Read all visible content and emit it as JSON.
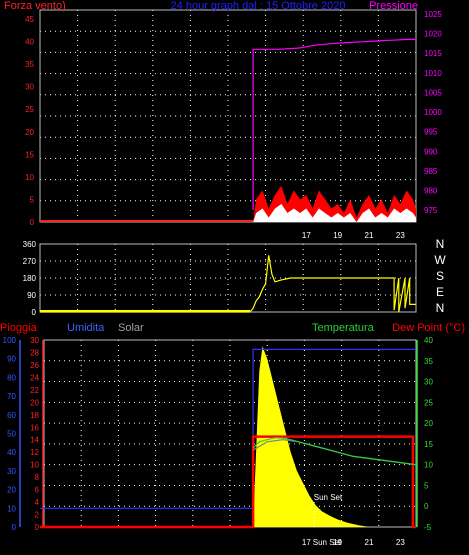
{
  "colors": {
    "wind": "#ff2020",
    "wind_gust_fill": "#ff0000",
    "wind_avg_fill": "#ffffff",
    "wind_dir": "#ffff00",
    "pressure": "#ff00ff",
    "rain": "#ff0000",
    "humidity": "#3030ff",
    "solar": "#ffff00",
    "temperature": "#2ecc40",
    "dew": "#808080",
    "grid": "#ffffff",
    "axis_left1": "#3355ff",
    "axis_left2": "#ff2020",
    "axis_right": "#33dd33"
  },
  "chart_data": [
    {
      "type": "line",
      "panel": "wind-pressure",
      "title": "24 hour graph dal : 15 Ottobre 2020",
      "left_label": "Forza vento)",
      "right_label": "Pressione",
      "left_ticks": [
        "0",
        "5",
        "10",
        "15",
        "20",
        "25",
        "30",
        "35",
        "40",
        "45"
      ],
      "right_ticks": [
        "975",
        "980",
        "985",
        "990",
        "995",
        "1000",
        "1005",
        "1010",
        "1015",
        "1020",
        "1025"
      ],
      "x_ticks": [
        "17",
        "19",
        "21",
        "23"
      ],
      "ylim_left": [
        0,
        47
      ],
      "ylim_right": [
        972,
        1026
      ],
      "x_range_hours": [
        0,
        24
      ],
      "grid": true,
      "series": [
        {
          "key": "pressure",
          "x": [
            13.6,
            13.6,
            15.2,
            16.5,
            17.5,
            18.5,
            19.5,
            20.5,
            21.5,
            22.5,
            23.5,
            24
          ],
          "y": [
            975,
            1016,
            1016,
            1016.3,
            1017,
            1017.4,
            1017.7,
            1017.9,
            1018.1,
            1018.3,
            1018.5,
            1018.5
          ]
        },
        {
          "key": "wind_gust",
          "x": [
            0,
            13.6,
            13.8,
            14.2,
            14.6,
            15,
            15.4,
            15.8,
            16.2,
            16.6,
            17,
            17.4,
            17.8,
            18.2,
            18.6,
            19,
            19.4,
            19.8,
            20.2,
            20.6,
            21,
            21.4,
            21.8,
            22.2,
            22.6,
            23,
            23.4,
            23.8,
            24
          ],
          "y": [
            0,
            0,
            5,
            7,
            3,
            6,
            8,
            4,
            7,
            5,
            6,
            3,
            7,
            5,
            3,
            4,
            2,
            5,
            1,
            4,
            6,
            3,
            5,
            2,
            6,
            4,
            7,
            5,
            3
          ]
        },
        {
          "key": "wind_avg",
          "x": [
            0,
            13.6,
            13.8,
            14.2,
            14.6,
            15,
            15.4,
            15.8,
            16.2,
            16.6,
            17,
            17.4,
            17.8,
            18.2,
            18.6,
            19,
            19.4,
            19.8,
            20.2,
            20.6,
            21,
            21.4,
            21.8,
            22.2,
            22.6,
            23,
            23.4,
            23.8,
            24
          ],
          "y": [
            0,
            0,
            2,
            3,
            1,
            3,
            4,
            2,
            3,
            2,
            3,
            1,
            3,
            2,
            1,
            2,
            1,
            2,
            0,
            2,
            3,
            1,
            2,
            1,
            3,
            2,
            3,
            2,
            1
          ]
        }
      ]
    },
    {
      "type": "line",
      "panel": "wind-direction",
      "left_ticks": [
        "0",
        "90",
        "180",
        "270",
        "360"
      ],
      "right_labels": [
        "N",
        "W",
        "S",
        "E",
        "N"
      ],
      "ylim": [
        0,
        360
      ],
      "grid": true,
      "series": [
        {
          "key": "wind_dir",
          "x": [
            0,
            13.4,
            13.6,
            13.8,
            14.0,
            14.2,
            14.4,
            14.6,
            14.8,
            15.0,
            15.4,
            16.0,
            17,
            18,
            19,
            20,
            21,
            22,
            22.6,
            22.6,
            22.9,
            22.9,
            23.3,
            23.3,
            23.6,
            23.6,
            24
          ],
          "y": [
            0,
            0,
            20,
            60,
            80,
            120,
            150,
            300,
            200,
            160,
            170,
            180,
            180,
            180,
            180,
            180,
            180,
            180,
            180,
            10,
            180,
            0,
            180,
            20,
            180,
            40,
            40
          ]
        }
      ]
    },
    {
      "type": "line",
      "panel": "rain-humidity-temp",
      "labels": {
        "rain": "Pioggia",
        "humidity": "Umidita",
        "solar": "Solar",
        "temperature": "Temperatura",
        "dew": "Dew Point (°C)"
      },
      "left1_ticks": [
        "0",
        "10",
        "20",
        "30",
        "40",
        "50",
        "60",
        "70",
        "80",
        "90",
        "100"
      ],
      "left2_ticks": [
        "0",
        "2",
        "4",
        "6",
        "8",
        "10",
        "12",
        "14",
        "16",
        "18",
        "20",
        "22",
        "24",
        "26",
        "28",
        "30"
      ],
      "right_ticks": [
        "-5",
        "0",
        "5",
        "10",
        "15",
        "20",
        "25",
        "30",
        "35",
        "40"
      ],
      "x_ticks": [
        "17",
        "19",
        "21",
        "23"
      ],
      "annotations": [
        "Sun Set",
        "Sun Set"
      ],
      "ylim_humidity": [
        0,
        100
      ],
      "ylim_rain": [
        0,
        30
      ],
      "ylim_temp": [
        -5,
        40
      ],
      "grid": true,
      "series": [
        {
          "key": "humidity",
          "x": [
            0,
            13.6,
            13.6,
            24
          ],
          "y": [
            10,
            10,
            95,
            95
          ]
        },
        {
          "key": "rain",
          "x": [
            0,
            13.6,
            13.6,
            23.8,
            23.8,
            24
          ],
          "y": [
            0,
            0,
            14.5,
            14.5,
            0,
            0
          ]
        },
        {
          "key": "temperature",
          "x": [
            13.6,
            14,
            14.5,
            15,
            15.5,
            16,
            17,
            18,
            19,
            20,
            21,
            22,
            23,
            24
          ],
          "y": [
            14,
            15.5,
            16,
            16.5,
            16.4,
            16,
            15,
            14,
            13,
            12,
            11.5,
            11,
            10.5,
            10
          ]
        },
        {
          "key": "dew",
          "x": [
            13.6,
            14.5,
            15.5,
            16.5,
            18,
            20,
            22,
            24
          ],
          "y": [
            13.5,
            15.5,
            16,
            15.5,
            14,
            12,
            11,
            10
          ]
        },
        {
          "key": "solar",
          "x": [
            13.6,
            14.0,
            14.2,
            14.5,
            14.8,
            15.2,
            15.6,
            16.0,
            16.4,
            16.8,
            17.2,
            17.6,
            18.0,
            18.5,
            19.0,
            19.6,
            20.3,
            21.0
          ],
          "y": [
            0,
            25,
            29,
            27,
            24,
            20,
            16,
            12,
            9,
            7,
            5,
            3.5,
            2.5,
            1.8,
            1.2,
            0.7,
            0.3,
            0
          ]
        }
      ]
    }
  ]
}
